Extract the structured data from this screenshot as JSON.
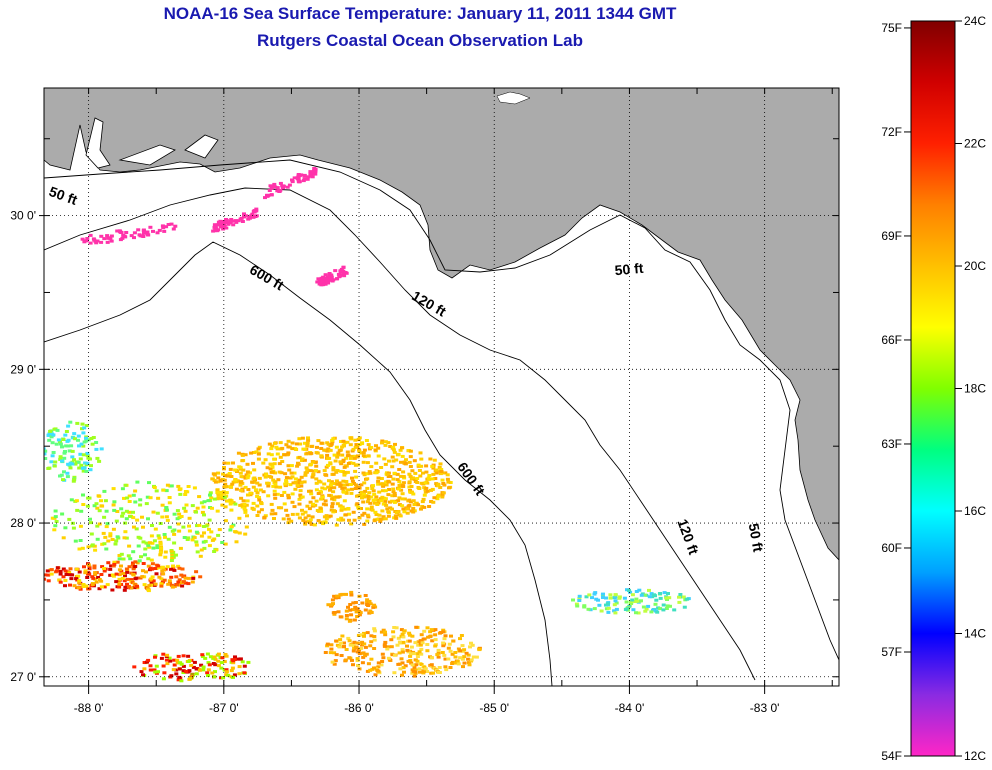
{
  "header": {
    "title": "NOAA-16 Sea Surface Temperature:  January 11, 2011 1344 GMT",
    "subtitle": "Rutgers Coastal Ocean Observation Lab"
  },
  "map": {
    "lon_range": [
      -88.33,
      -82.45
    ],
    "lat_range": [
      26.94,
      30.83
    ],
    "lon_ticks": [
      {
        "value": -88,
        "label": "-88 0'"
      },
      {
        "value": -87,
        "label": "-87 0'"
      },
      {
        "value": -86,
        "label": "-86 0'"
      },
      {
        "value": -85,
        "label": "-85 0'"
      },
      {
        "value": -84,
        "label": "-84 0'"
      },
      {
        "value": -83,
        "label": "-83 0'"
      }
    ],
    "lat_ticks": [
      {
        "value": 27,
        "label": "27 0'"
      },
      {
        "value": 28,
        "label": "28 0'"
      },
      {
        "value": 29,
        "label": "29 0'"
      },
      {
        "value": 30,
        "label": "30 0'"
      }
    ],
    "contour_labels": [
      {
        "text": "50 ft",
        "lon": -88.2,
        "lat": 30.1,
        "angle": 20
      },
      {
        "text": "600 ft",
        "lon": -86.7,
        "lat": 29.57,
        "angle": 30
      },
      {
        "text": "120 ft",
        "lon": -85.5,
        "lat": 29.4,
        "angle": 30
      },
      {
        "text": "50 ft",
        "lon": -84.0,
        "lat": 29.62,
        "angle": -5
      },
      {
        "text": "600 ft",
        "lon": -85.2,
        "lat": 28.27,
        "angle": 55
      },
      {
        "text": "120 ft",
        "lon": -83.6,
        "lat": 27.9,
        "angle": 70
      },
      {
        "text": "50 ft",
        "lon": -83.1,
        "lat": 27.9,
        "angle": 80
      }
    ],
    "colors": {
      "land": "#ababab",
      "ocean": "#ffffff",
      "grid": "#000000"
    }
  },
  "colorbar": {
    "celsius_ticks": [
      "24C",
      "22C",
      "20C",
      "18C",
      "16C",
      "14C",
      "12C"
    ],
    "fahrenheit_ticks": [
      "75F",
      "72F",
      "69F",
      "66F",
      "63F",
      "60F",
      "57F",
      "54F"
    ],
    "range_c": [
      12,
      24
    ],
    "colormap": [
      "#ff26c6",
      "#8a2be2",
      "#0000ff",
      "#00a0ff",
      "#00ffff",
      "#00ff80",
      "#80ff00",
      "#ffff00",
      "#ffc000",
      "#ff8000",
      "#ff2000",
      "#d00000",
      "#800000"
    ]
  }
}
